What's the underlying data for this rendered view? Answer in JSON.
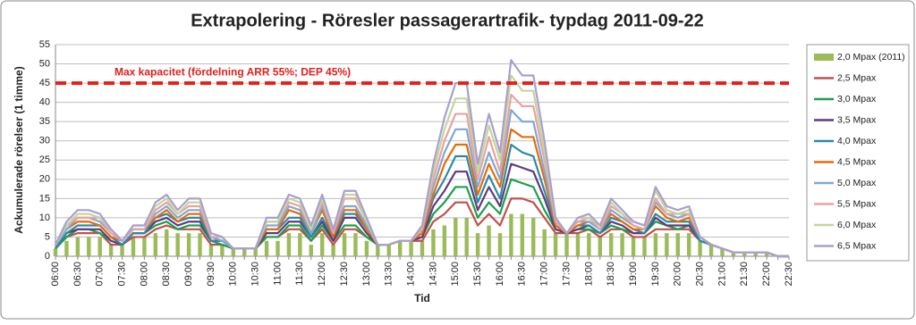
{
  "chart_data": {
    "type": "bar-line",
    "title": "Extrapolering - Röresler passagerartrafik- typdag 2011-09-22",
    "x_label": "Tid",
    "y_label": "Ackumulerade rörelser (1 timme)",
    "categories": [
      "06:00",
      null,
      "06:30",
      null,
      "07:00",
      null,
      "07:30",
      null,
      "08:00",
      null,
      "08:30",
      null,
      "09:00",
      null,
      "09:30",
      null,
      "10:00",
      null,
      "10:30",
      null,
      "11:00",
      null,
      "11:30",
      null,
      "12:00",
      null,
      "12:30",
      null,
      "13:00",
      null,
      "13:30",
      null,
      "14:00",
      null,
      "14:30",
      null,
      "15:00",
      null,
      "15:30",
      null,
      "16:00",
      null,
      "16:30",
      null,
      "17:00",
      null,
      "17:30",
      null,
      "18:00",
      null,
      "18:30",
      null,
      "19:00",
      null,
      "19:30",
      null,
      "20:00",
      null,
      "20:30",
      null,
      "21:00",
      null,
      "21:30",
      null,
      "22:00",
      null,
      "22:30"
    ],
    "ylim": [
      0,
      55
    ],
    "yticks": [
      0,
      5,
      10,
      15,
      20,
      25,
      30,
      35,
      40,
      45,
      50,
      55
    ],
    "grid": true,
    "reference_line": {
      "value": 45,
      "label": "Max kapacitet (fördelning  ARR 55%; DEP 45%)",
      "color": "#e0201c"
    },
    "series": [
      {
        "name": "2,0 Mpax (2011)",
        "kind": "bar",
        "color": "#9bbb59",
        "values": [
          2,
          4,
          5,
          5,
          5,
          3,
          3,
          5,
          5,
          6,
          7,
          6,
          6,
          6,
          3,
          3,
          2,
          2,
          2,
          4,
          4,
          6,
          6,
          3,
          6,
          3,
          6,
          6,
          4,
          3,
          3,
          4,
          4,
          4,
          7,
          8,
          10,
          10,
          6,
          8,
          6,
          11,
          11,
          10,
          7,
          6,
          6,
          6,
          6,
          5,
          6,
          6,
          5,
          5,
          6,
          6,
          6,
          6,
          4,
          3,
          2,
          1,
          1,
          1,
          1,
          0,
          0
        ]
      },
      {
        "name": "2,5 Mpax",
        "kind": "line",
        "color": "#c0504d",
        "values": [
          2,
          5,
          6,
          6,
          6,
          3,
          3,
          5,
          5,
          7,
          8,
          7,
          7,
          7,
          3,
          3,
          2,
          2,
          2,
          5,
          5,
          7,
          7,
          4,
          7,
          3,
          7,
          7,
          5,
          3,
          3,
          4,
          4,
          4,
          9,
          11,
          14,
          14,
          8,
          11,
          8,
          15,
          15,
          14,
          10,
          6,
          6,
          6,
          7,
          5,
          7,
          7,
          5,
          5,
          7,
          7,
          7,
          7,
          4,
          3,
          2,
          1,
          1,
          1,
          1,
          0,
          0
        ]
      },
      {
        "name": "3,0 Mpax",
        "kind": "line",
        "color": "#1aa14a",
        "values": [
          2,
          5,
          7,
          7,
          6,
          4,
          3,
          6,
          6,
          8,
          9,
          7,
          8,
          8,
          4,
          3,
          2,
          2,
          2,
          5,
          5,
          8,
          8,
          4,
          8,
          4,
          8,
          8,
          5,
          3,
          3,
          4,
          4,
          5,
          11,
          14,
          18,
          18,
          10,
          14,
          11,
          20,
          19,
          18,
          12,
          7,
          6,
          7,
          7,
          6,
          8,
          7,
          6,
          6,
          9,
          8,
          7,
          8,
          4,
          3,
          2,
          1,
          1,
          1,
          1,
          0,
          0
        ]
      },
      {
        "name": "3,5 Mpax",
        "kind": "line",
        "color": "#60397f",
        "values": [
          2,
          6,
          7,
          7,
          7,
          4,
          3,
          6,
          6,
          9,
          10,
          8,
          9,
          9,
          4,
          4,
          2,
          2,
          2,
          6,
          6,
          9,
          9,
          5,
          9,
          4,
          10,
          10,
          6,
          3,
          3,
          4,
          4,
          5,
          13,
          17,
          22,
          22,
          12,
          18,
          13,
          24,
          23,
          22,
          15,
          7,
          6,
          7,
          8,
          6,
          9,
          8,
          6,
          6,
          10,
          8,
          8,
          8,
          4,
          3,
          2,
          1,
          1,
          1,
          1,
          0,
          0
        ]
      },
      {
        "name": "4,0 Mpax",
        "kind": "line",
        "color": "#2c8aa8",
        "values": [
          2,
          6,
          8,
          8,
          8,
          5,
          3,
          6,
          6,
          10,
          11,
          9,
          10,
          10,
          4,
          4,
          2,
          2,
          2,
          7,
          7,
          10,
          10,
          5,
          10,
          5,
          11,
          11,
          7,
          3,
          3,
          4,
          4,
          6,
          15,
          20,
          26,
          26,
          14,
          21,
          15,
          29,
          27,
          26,
          17,
          8,
          6,
          8,
          8,
          6,
          10,
          9,
          7,
          6,
          11,
          9,
          9,
          9,
          4,
          3,
          2,
          1,
          1,
          1,
          1,
          0,
          0
        ]
      },
      {
        "name": "4,5 Mpax",
        "kind": "line",
        "color": "#e46c0a",
        "values": [
          3,
          7,
          9,
          9,
          8,
          5,
          4,
          7,
          7,
          10,
          12,
          9,
          11,
          11,
          5,
          4,
          2,
          2,
          2,
          7,
          7,
          12,
          11,
          6,
          12,
          5,
          12,
          12,
          7,
          3,
          3,
          4,
          4,
          6,
          16,
          24,
          29,
          29,
          16,
          24,
          18,
          33,
          31,
          31,
          20,
          8,
          6,
          8,
          9,
          7,
          11,
          9,
          7,
          7,
          13,
          10,
          9,
          10,
          5,
          3,
          2,
          1,
          1,
          1,
          1,
          0,
          0
        ]
      },
      {
        "name": "5,0 Mpax",
        "kind": "line",
        "color": "#7fa7d8",
        "values": [
          3,
          7,
          10,
          10,
          9,
          6,
          4,
          7,
          7,
          11,
          13,
          10,
          12,
          12,
          5,
          4,
          2,
          2,
          2,
          8,
          8,
          13,
          12,
          6,
          13,
          6,
          13,
          13,
          8,
          3,
          3,
          4,
          4,
          7,
          18,
          27,
          33,
          33,
          18,
          27,
          20,
          38,
          35,
          35,
          22,
          9,
          6,
          9,
          9,
          7,
          12,
          10,
          8,
          7,
          14,
          11,
          10,
          11,
          5,
          3,
          2,
          1,
          1,
          1,
          1,
          0,
          0
        ]
      },
      {
        "name": "5,5 Mpax",
        "kind": "line",
        "color": "#e8a3a0",
        "values": [
          3,
          8,
          10,
          10,
          10,
          6,
          4,
          7,
          7,
          12,
          14,
          11,
          13,
          13,
          5,
          5,
          2,
          2,
          2,
          9,
          9,
          14,
          13,
          7,
          14,
          6,
          15,
          15,
          9,
          3,
          3,
          4,
          4,
          7,
          20,
          30,
          37,
          37,
          20,
          31,
          22,
          42,
          39,
          39,
          25,
          9,
          6,
          9,
          10,
          7,
          13,
          11,
          8,
          7,
          15,
          11,
          11,
          11,
          5,
          3,
          2,
          1,
          1,
          1,
          1,
          0,
          0
        ]
      },
      {
        "name": "6,0 Mpax",
        "kind": "line",
        "color": "#c3d69b",
        "values": [
          3,
          8,
          11,
          11,
          10,
          7,
          4,
          8,
          8,
          13,
          15,
          11,
          14,
          14,
          6,
          5,
          2,
          2,
          2,
          9,
          9,
          15,
          14,
          7,
          15,
          7,
          16,
          16,
          9,
          3,
          3,
          4,
          4,
          8,
          22,
          33,
          41,
          41,
          22,
          34,
          25,
          47,
          43,
          43,
          27,
          10,
          6,
          10,
          10,
          8,
          14,
          11,
          9,
          8,
          17,
          12,
          11,
          12,
          5,
          3,
          2,
          1,
          1,
          1,
          1,
          0,
          0
        ]
      },
      {
        "name": "6,5 Mpax",
        "kind": "line",
        "color": "#a99fd0",
        "values": [
          3,
          9,
          12,
          12,
          11,
          7,
          4,
          8,
          8,
          14,
          16,
          12,
          15,
          15,
          6,
          5,
          2,
          2,
          2,
          10,
          10,
          16,
          15,
          8,
          16,
          7,
          17,
          17,
          10,
          3,
          3,
          4,
          4,
          8,
          24,
          36,
          45,
          45,
          24,
          37,
          27,
          51,
          47,
          47,
          30,
          10,
          6,
          10,
          11,
          8,
          15,
          12,
          9,
          8,
          18,
          13,
          12,
          13,
          5,
          3,
          2,
          1,
          1,
          1,
          1,
          0,
          0
        ]
      }
    ]
  }
}
